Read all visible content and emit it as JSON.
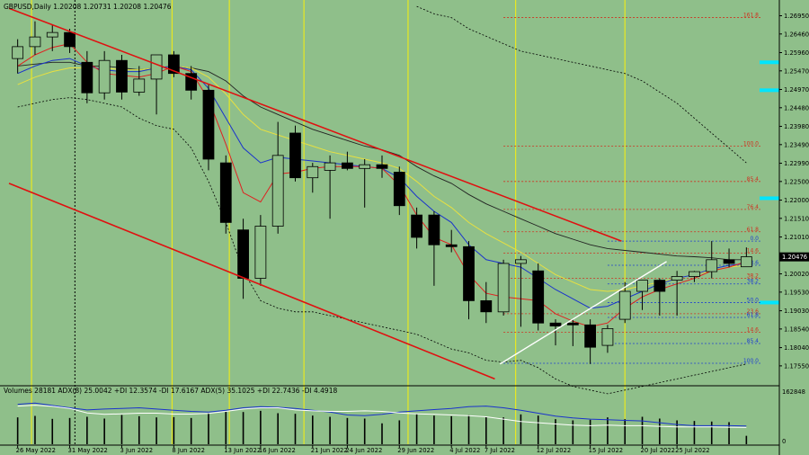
{
  "header": {
    "symbol_line": "GBPUSD,Daily  1.20208 1.20731 1.20208 1.20476",
    "indicator_line": "Volumes 28181  ADX(8) 25.0042 +DI 12.3574 -DI 17.6167  ADX(5) 35.1025 +DI 22.7436 -DI 4.4918"
  },
  "colors": {
    "background": "#8fbf8a",
    "bull_body": "#8fbf8a",
    "bear_body": "#000000",
    "channel": "#e01010",
    "vline": "#e8e820",
    "ma_red": "#e02020",
    "ma_blue": "#1a33cc",
    "ma_yellow": "#e8e040",
    "ma_black": "#222222",
    "bollinger": "#000000",
    "fib_red": "#d03020",
    "fib_blue": "#2040d0",
    "trendline": "#ffffff",
    "cyan_marker": "#00e5ff"
  },
  "chart_data": {
    "type": "candlestick",
    "y_range": [
      1.1704,
      1.273
    ],
    "x_labels": [
      "26 May 2022",
      "31 May 2022",
      "3 Jun 2022",
      "8 Jun 2022",
      "13 Jun 2022",
      "16 Jun 2022",
      "21 Jun 2022",
      "24 Jun 2022",
      "29 Jun 2022",
      "4 Jul 2022",
      "7 Jul 2022",
      "12 Jul 2022",
      "15 Jul 2022",
      "20 Jul 2022",
      "25 Jul 2022"
    ],
    "x_label_index": [
      0,
      3,
      6,
      9,
      12,
      14,
      17,
      19,
      22,
      25,
      27,
      30,
      33,
      36,
      38
    ],
    "price_labels": [
      "1.26950",
      "1.26460",
      "1.25960",
      "1.25470",
      "1.24970",
      "1.24480",
      "1.23980",
      "1.23490",
      "1.22990",
      "1.22500",
      "1.22000",
      "1.21510",
      "1.21010",
      "1.20520",
      "1.20020",
      "1.19530",
      "1.19030",
      "1.18540",
      "1.18040",
      "1.17550"
    ],
    "current_price": "1.20476",
    "candles": [
      {
        "o": 1.258,
        "h": 1.2632,
        "l": 1.254,
        "c": 1.2612
      },
      {
        "o": 1.2612,
        "h": 1.268,
        "l": 1.259,
        "c": 1.2638
      },
      {
        "o": 1.2638,
        "h": 1.267,
        "l": 1.26,
        "c": 1.265
      },
      {
        "o": 1.265,
        "h": 1.266,
        "l": 1.2595,
        "c": 1.2612
      },
      {
        "o": 1.257,
        "h": 1.26,
        "l": 1.246,
        "c": 1.2488
      },
      {
        "o": 1.2488,
        "h": 1.26,
        "l": 1.247,
        "c": 1.2575
      },
      {
        "o": 1.2575,
        "h": 1.259,
        "l": 1.247,
        "c": 1.249
      },
      {
        "o": 1.249,
        "h": 1.256,
        "l": 1.248,
        "c": 1.2525
      },
      {
        "o": 1.2525,
        "h": 1.259,
        "l": 1.243,
        "c": 1.259
      },
      {
        "o": 1.259,
        "h": 1.26,
        "l": 1.253,
        "c": 1.254
      },
      {
        "o": 1.254,
        "h": 1.256,
        "l": 1.247,
        "c": 1.2495
      },
      {
        "o": 1.2495,
        "h": 1.251,
        "l": 1.228,
        "c": 1.231
      },
      {
        "o": 1.23,
        "h": 1.232,
        "l": 1.211,
        "c": 1.214
      },
      {
        "o": 1.212,
        "h": 1.215,
        "l": 1.1935,
        "c": 1.199
      },
      {
        "o": 1.199,
        "h": 1.216,
        "l": 1.197,
        "c": 1.213
      },
      {
        "o": 1.213,
        "h": 1.241,
        "l": 1.211,
        "c": 1.232
      },
      {
        "o": 1.238,
        "h": 1.24,
        "l": 1.225,
        "c": 1.226
      },
      {
        "o": 1.226,
        "h": 1.23,
        "l": 1.222,
        "c": 1.229
      },
      {
        "o": 1.228,
        "h": 1.232,
        "l": 1.215,
        "c": 1.23
      },
      {
        "o": 1.23,
        "h": 1.233,
        "l": 1.228,
        "c": 1.2285
      },
      {
        "o": 1.2285,
        "h": 1.231,
        "l": 1.218,
        "c": 1.2295
      },
      {
        "o": 1.2295,
        "h": 1.232,
        "l": 1.226,
        "c": 1.2285
      },
      {
        "o": 1.2275,
        "h": 1.229,
        "l": 1.216,
        "c": 1.2185
      },
      {
        "o": 1.216,
        "h": 1.218,
        "l": 1.207,
        "c": 1.21
      },
      {
        "o": 1.216,
        "h": 1.217,
        "l": 1.197,
        "c": 1.208
      },
      {
        "o": 1.208,
        "h": 1.212,
        "l": 1.206,
        "c": 1.2075
      },
      {
        "o": 1.2075,
        "h": 1.209,
        "l": 1.188,
        "c": 1.193
      },
      {
        "o": 1.193,
        "h": 1.198,
        "l": 1.187,
        "c": 1.19
      },
      {
        "o": 1.19,
        "h": 1.204,
        "l": 1.189,
        "c": 1.203
      },
      {
        "o": 1.203,
        "h": 1.205,
        "l": 1.186,
        "c": 1.204
      },
      {
        "o": 1.201,
        "h": 1.203,
        "l": 1.185,
        "c": 1.187
      },
      {
        "o": 1.187,
        "h": 1.188,
        "l": 1.181,
        "c": 1.1862
      },
      {
        "o": 1.187,
        "h": 1.188,
        "l": 1.1808,
        "c": 1.1865
      },
      {
        "o": 1.1865,
        "h": 1.188,
        "l": 1.176,
        "c": 1.1805
      },
      {
        "o": 1.181,
        "h": 1.1865,
        "l": 1.179,
        "c": 1.1855
      },
      {
        "o": 1.188,
        "h": 1.198,
        "l": 1.187,
        "c": 1.1955
      },
      {
        "o": 1.1955,
        "h": 1.198,
        "l": 1.1905,
        "c": 1.1985
      },
      {
        "o": 1.1985,
        "h": 1.199,
        "l": 1.189,
        "c": 1.1955
      },
      {
        "o": 1.1985,
        "h": 1.201,
        "l": 1.189,
        "c": 1.1995
      },
      {
        "o": 1.1995,
        "h": 1.201,
        "l": 1.198,
        "c": 1.2008
      },
      {
        "o": 1.2008,
        "h": 1.209,
        "l": 1.199,
        "c": 1.204
      },
      {
        "o": 1.204,
        "h": 1.207,
        "l": 1.202,
        "c": 1.203
      },
      {
        "o": 1.2021,
        "h": 1.2073,
        "l": 1.2021,
        "c": 1.2048
      }
    ],
    "fib_levels": [
      {
        "label": "161.8",
        "price": 1.269,
        "color": "red",
        "x_from": 28
      },
      {
        "label": "100.0",
        "price": 1.2345,
        "color": "red",
        "x_from": 28
      },
      {
        "label": "85.4",
        "price": 1.225,
        "color": "red",
        "x_from": 28
      },
      {
        "label": "76.4",
        "price": 1.2175,
        "color": "red",
        "x_from": 28
      },
      {
        "label": "61.8",
        "price": 1.2115,
        "color": "red",
        "x_from": 28
      },
      {
        "label": "0.0",
        "price": 1.209,
        "color": "blue",
        "x_from": 34
      },
      {
        "label": "14.6",
        "price": 1.2058,
        "color": "red",
        "x_from": 28
      },
      {
        "label": "23.6",
        "price": 1.2025,
        "color": "blue",
        "x_from": 34
      },
      {
        "label": "38.2",
        "price": 1.199,
        "color": "red",
        "x_from": 28
      },
      {
        "label": "38.2",
        "price": 1.1975,
        "color": "blue",
        "x_from": 34
      },
      {
        "label": "50.0",
        "price": 1.1925,
        "color": "blue",
        "x_from": 34
      },
      {
        "label": "23.6",
        "price": 1.1895,
        "color": "red",
        "x_from": 28
      },
      {
        "label": "61.8",
        "price": 1.1885,
        "color": "blue",
        "x_from": 34
      },
      {
        "label": "14.6",
        "price": 1.1845,
        "color": "red",
        "x_from": 28
      },
      {
        "label": "85.4",
        "price": 1.1815,
        "color": "blue",
        "x_from": 34
      },
      {
        "label": "100.0",
        "price": 1.1762,
        "color": "blue",
        "x_from": 28
      }
    ],
    "channel_upper": [
      [
        -0.5,
        1.2715
      ],
      [
        34.8,
        1.209
      ]
    ],
    "channel_lower": [
      [
        -0.5,
        1.2245
      ],
      [
        27.5,
        1.172
      ]
    ],
    "trendline": [
      [
        27.8,
        1.176
      ],
      [
        37.4,
        1.2035
      ]
    ],
    "vlines": [
      0.8,
      8.9,
      12.2,
      16.5,
      22.5,
      28.7,
      35.0
    ],
    "vline_dotted": 3.3,
    "ma_red": [
      1.256,
      1.259,
      1.261,
      1.262,
      1.257,
      1.254,
      1.2535,
      1.253,
      1.254,
      1.256,
      1.2545,
      1.247,
      1.235,
      1.222,
      1.2195,
      1.227,
      1.2275,
      1.2285,
      1.229,
      1.229,
      1.229,
      1.2285,
      1.224,
      1.216,
      1.21,
      1.208,
      1.2,
      1.195,
      1.194,
      1.1935,
      1.193,
      1.1895,
      1.1875,
      1.186,
      1.187,
      1.191,
      1.194,
      1.196,
      1.1975,
      1.199,
      1.201,
      1.202,
      1.2035
    ],
    "ma_blue": [
      1.254,
      1.256,
      1.2575,
      1.258,
      1.256,
      1.255,
      1.2545,
      1.2545,
      1.2555,
      1.256,
      1.255,
      1.25,
      1.242,
      1.234,
      1.23,
      1.2315,
      1.231,
      1.2305,
      1.23,
      1.2295,
      1.229,
      1.2285,
      1.226,
      1.221,
      1.217,
      1.214,
      1.208,
      1.204,
      1.203,
      1.202,
      1.199,
      1.196,
      1.1935,
      1.191,
      1.1915,
      1.1935,
      1.1955,
      1.1975,
      1.199,
      1.2,
      1.2015,
      1.2025,
      1.203
    ],
    "ma_yellow": [
      1.251,
      1.253,
      1.2545,
      1.2555,
      1.2555,
      1.2555,
      1.255,
      1.255,
      1.2555,
      1.256,
      1.2555,
      1.253,
      1.2485,
      1.243,
      1.239,
      1.2375,
      1.236,
      1.2345,
      1.233,
      1.232,
      1.231,
      1.23,
      1.2285,
      1.225,
      1.221,
      1.218,
      1.214,
      1.211,
      1.2085,
      1.206,
      1.203,
      1.2,
      1.198,
      1.196,
      1.1955,
      1.196,
      1.197,
      1.198,
      1.199,
      1.2,
      1.201,
      1.202,
      1.2025
    ],
    "ma_black": [
      1.256,
      1.2565,
      1.257,
      1.257,
      1.256,
      1.256,
      1.2555,
      1.255,
      1.2555,
      1.256,
      1.2555,
      1.2545,
      1.252,
      1.248,
      1.245,
      1.243,
      1.241,
      1.239,
      1.2375,
      1.236,
      1.2345,
      1.2335,
      1.232,
      1.229,
      1.2265,
      1.2245,
      1.2215,
      1.219,
      1.217,
      1.215,
      1.213,
      1.211,
      1.2095,
      1.208,
      1.207,
      1.2065,
      1.206,
      1.2055,
      1.205,
      1.2048,
      1.2045,
      1.204,
      1.204
    ],
    "bb_upper": [
      null,
      null,
      null,
      null,
      null,
      null,
      null,
      null,
      null,
      null,
      null,
      null,
      null,
      null,
      null,
      null,
      null,
      null,
      null,
      null,
      null,
      null,
      null,
      null,
      null,
      null,
      null,
      null,
      null,
      null,
      null,
      null,
      null,
      null,
      null,
      null,
      null,
      null,
      null,
      null,
      null,
      null,
      null
    ],
    "bb_lower": [
      1.245,
      1.246,
      1.247,
      1.2475,
      1.247,
      1.246,
      1.245,
      1.242,
      1.24,
      1.239,
      1.234,
      1.225,
      1.214,
      1.201,
      1.193,
      1.191,
      1.19,
      1.19,
      1.189,
      1.188,
      1.187,
      1.186,
      1.185,
      1.184,
      1.182,
      1.18,
      1.179,
      1.177,
      1.1765,
      1.177,
      1.175,
      1.172,
      1.17,
      1.169,
      1.168,
      1.169,
      1.17,
      1.171,
      1.172,
      1.173,
      1.174,
      1.175,
      1.176
    ],
    "bb_upper_vals": [
      null,
      null,
      null,
      null,
      null,
      null,
      null,
      null,
      null,
      null,
      null,
      null,
      null,
      null,
      null,
      null,
      null,
      null,
      null,
      null,
      null,
      null,
      null,
      1.272,
      1.27,
      1.269,
      1.266,
      1.264,
      1.262,
      1.26,
      1.259,
      1.258,
      1.257,
      1.256,
      1.255,
      1.254,
      1.252,
      1.249,
      1.246,
      1.242,
      1.238,
      1.234,
      1.23
    ],
    "volume_range": [
      0,
      162848
    ],
    "volume_labels": [
      "162848",
      "0"
    ],
    "volumes": [
      90000,
      95000,
      85000,
      88000,
      92000,
      86000,
      98000,
      94000,
      90000,
      91000,
      88000,
      105000,
      110000,
      108000,
      112000,
      104000,
      102000,
      96000,
      92000,
      88000,
      86000,
      70000,
      80000,
      102000,
      96000,
      94000,
      98000,
      92000,
      90000,
      100000,
      96000,
      84000,
      80000,
      82000,
      90000,
      84000,
      92000,
      86000,
      80000,
      78000,
      76000,
      74000,
      28181
    ],
    "adx_white": [
      128000,
      131000,
      127000,
      120000,
      105000,
      100000,
      102000,
      104000,
      104000,
      101000,
      101000,
      103000,
      110000,
      118000,
      122000,
      122000,
      115000,
      112000,
      110000,
      110000,
      112000,
      110000,
      105000,
      102000,
      100000,
      98000,
      96000,
      92000,
      84000,
      76000,
      72000,
      68000,
      64000,
      62000,
      64000,
      62000,
      62000,
      60000,
      58000,
      58000,
      58000,
      57000,
      56000
    ],
    "adx_blue": [
      134000,
      138000,
      130000,
      122000,
      115000,
      118000,
      120000,
      122000,
      118000,
      114000,
      110000,
      108000,
      114000,
      122000,
      126000,
      124000,
      120000,
      114000,
      108000,
      98000,
      96000,
      100000,
      108000,
      112000,
      116000,
      120000,
      126000,
      128000,
      122000,
      114000,
      104000,
      94000,
      88000,
      84000,
      82000,
      80000,
      78000,
      72000,
      66000,
      62000,
      62000,
      62000,
      61000
    ]
  }
}
